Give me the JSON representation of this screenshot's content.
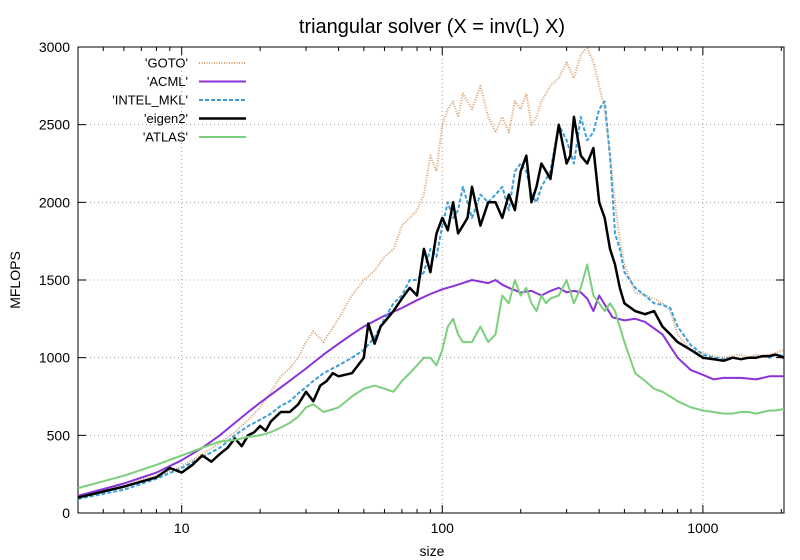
{
  "chart_data": {
    "type": "line",
    "title": "triangular solver (X = inv(L) X)",
    "xlabel": "size",
    "ylabel": "MFLOPS",
    "xscale": "log",
    "xlim": [
      4,
      2048
    ],
    "ylim": [
      0,
      3000
    ],
    "xticks": [
      {
        "value": 10,
        "label": "10"
      },
      {
        "value": 100,
        "label": "100"
      },
      {
        "value": 1000,
        "label": "1000"
      }
    ],
    "yticks": [
      {
        "value": 0,
        "label": "0"
      },
      {
        "value": 500,
        "label": "500"
      },
      {
        "value": 1000,
        "label": "1000"
      },
      {
        "value": 1500,
        "label": "1500"
      },
      {
        "value": 2000,
        "label": "2000"
      },
      {
        "value": 2500,
        "label": "2500"
      },
      {
        "value": 3000,
        "label": "3000"
      }
    ],
    "grid": true,
    "legend_position": "top-left",
    "series": [
      {
        "name": "'GOTO'",
        "color": "#d9a070",
        "style": "dotted",
        "x": [
          4,
          6,
          8,
          10,
          12,
          14,
          16,
          18,
          20,
          22,
          24,
          26,
          28,
          30,
          32,
          35,
          40,
          45,
          50,
          55,
          60,
          65,
          70,
          75,
          80,
          85,
          90,
          95,
          100,
          105,
          110,
          115,
          120,
          130,
          140,
          150,
          160,
          170,
          180,
          190,
          200,
          210,
          220,
          230,
          240,
          250,
          260,
          280,
          300,
          320,
          340,
          360,
          380,
          400,
          420,
          440,
          460,
          480,
          500,
          550,
          600,
          650,
          700,
          750,
          800,
          900,
          1000,
          1100,
          1200,
          1300,
          1400,
          1500,
          1600,
          1700,
          1800,
          1900,
          2048
        ],
        "values": [
          100,
          190,
          240,
          300,
          380,
          450,
          520,
          600,
          680,
          780,
          880,
          930,
          1000,
          1100,
          1170,
          1100,
          1250,
          1400,
          1500,
          1560,
          1650,
          1700,
          1850,
          1900,
          1950,
          2050,
          2300,
          2200,
          2500,
          2600,
          2650,
          2550,
          2700,
          2600,
          2750,
          2550,
          2450,
          2550,
          2450,
          2650,
          2600,
          2700,
          2500,
          2550,
          2650,
          2700,
          2750,
          2800,
          2900,
          2800,
          2950,
          3000,
          2900,
          2750,
          2600,
          2300,
          2000,
          1750,
          1600,
          1420,
          1400,
          1380,
          1350,
          1300,
          1150,
          1050,
          1030,
          1010,
          1000,
          1010,
          1020,
          1000,
          1020,
          1010,
          1020,
          1030,
          1050
        ]
      },
      {
        "name": "'ACML'",
        "color": "#8b32d8",
        "style": "solid",
        "x": [
          4,
          6,
          8,
          10,
          12,
          14,
          16,
          18,
          20,
          25,
          30,
          35,
          40,
          45,
          50,
          60,
          70,
          80,
          90,
          100,
          110,
          120,
          130,
          140,
          150,
          160,
          170,
          180,
          200,
          220,
          240,
          260,
          280,
          300,
          320,
          340,
          360,
          380,
          400,
          450,
          500,
          550,
          600,
          700,
          800,
          900,
          1000,
          1100,
          1200,
          1400,
          1600,
          1800,
          2048
        ],
        "values": [
          110,
          190,
          260,
          340,
          420,
          500,
          580,
          650,
          710,
          830,
          930,
          1020,
          1090,
          1150,
          1200,
          1270,
          1320,
          1370,
          1410,
          1440,
          1460,
          1480,
          1500,
          1490,
          1480,
          1500,
          1470,
          1450,
          1420,
          1430,
          1400,
          1430,
          1450,
          1420,
          1430,
          1420,
          1380,
          1300,
          1400,
          1260,
          1240,
          1250,
          1230,
          1150,
          1000,
          920,
          890,
          860,
          870,
          870,
          860,
          880,
          880
        ]
      },
      {
        "name": "'INTEL_MKL'",
        "color": "#3ba0d8",
        "style": "dashed",
        "x": [
          4,
          6,
          8,
          10,
          12,
          14,
          16,
          18,
          20,
          22,
          24,
          26,
          28,
          30,
          32,
          35,
          40,
          45,
          50,
          55,
          60,
          65,
          70,
          75,
          80,
          85,
          90,
          95,
          100,
          105,
          110,
          115,
          120,
          130,
          140,
          150,
          160,
          170,
          180,
          190,
          200,
          210,
          220,
          230,
          240,
          250,
          260,
          280,
          300,
          320,
          340,
          360,
          380,
          400,
          420,
          440,
          460,
          480,
          500,
          550,
          600,
          650,
          700,
          750,
          800,
          900,
          1000,
          1100,
          1200,
          1300,
          1400,
          1500,
          1600,
          1700,
          1800,
          1900,
          2048
        ],
        "values": [
          90,
          150,
          220,
          290,
          360,
          420,
          500,
          560,
          600,
          640,
          690,
          720,
          770,
          810,
          850,
          900,
          950,
          1000,
          1050,
          1130,
          1250,
          1350,
          1400,
          1500,
          1500,
          1550,
          1700,
          1650,
          1850,
          2000,
          1900,
          1950,
          2100,
          1900,
          2050,
          2000,
          2050,
          2100,
          1950,
          2200,
          2250,
          2200,
          2050,
          2000,
          2100,
          2150,
          2200,
          2500,
          2400,
          2250,
          2550,
          2400,
          2450,
          2600,
          2650,
          2300,
          1800,
          1700,
          1550,
          1450,
          1400,
          1350,
          1340,
          1320,
          1200,
          1080,
          1020,
          1000,
          990,
          1000,
          990,
          1000,
          1000,
          1010,
          1000,
          1020,
          1010
        ]
      },
      {
        "name": "'eigen2'",
        "color": "#000000",
        "style": "solid-thick",
        "x": [
          4,
          6,
          8,
          9,
          10,
          11,
          12,
          13,
          14,
          15,
          16,
          17,
          18,
          19,
          20,
          21,
          22,
          24,
          26,
          28,
          30,
          32,
          34,
          36,
          38,
          40,
          45,
          50,
          52,
          55,
          58,
          60,
          65,
          70,
          75,
          80,
          85,
          90,
          95,
          100,
          105,
          110,
          115,
          120,
          125,
          130,
          140,
          150,
          160,
          170,
          180,
          190,
          200,
          210,
          220,
          230,
          240,
          250,
          260,
          280,
          300,
          310,
          320,
          340,
          360,
          380,
          400,
          420,
          440,
          460,
          480,
          500,
          550,
          600,
          650,
          700,
          750,
          800,
          900,
          1000,
          1100,
          1200,
          1300,
          1400,
          1500,
          1600,
          1700,
          1800,
          1900,
          2048
        ],
        "values": [
          100,
          170,
          230,
          290,
          260,
          310,
          370,
          330,
          380,
          420,
          480,
          430,
          500,
          520,
          560,
          530,
          590,
          650,
          650,
          700,
          780,
          720,
          820,
          850,
          900,
          880,
          900,
          1000,
          1220,
          1090,
          1200,
          1230,
          1300,
          1380,
          1450,
          1400,
          1700,
          1550,
          1800,
          1900,
          1820,
          2000,
          1800,
          1850,
          1900,
          2100,
          1850,
          2000,
          2000,
          1900,
          2050,
          1950,
          2200,
          2300,
          2000,
          2100,
          2250,
          2200,
          2150,
          2500,
          2250,
          2300,
          2550,
          2300,
          2250,
          2350,
          2000,
          1900,
          1700,
          1600,
          1450,
          1350,
          1300,
          1280,
          1300,
          1200,
          1150,
          1100,
          1050,
          1000,
          990,
          980,
          1000,
          990,
          1000,
          1000,
          1010,
          1010,
          1020,
          1000
        ]
      },
      {
        "name": "'ATLAS'",
        "color": "#7ccf7c",
        "style": "solid",
        "x": [
          4,
          6,
          8,
          10,
          12,
          14,
          16,
          18,
          20,
          22,
          24,
          26,
          28,
          30,
          32,
          35,
          40,
          45,
          50,
          55,
          60,
          65,
          70,
          75,
          80,
          85,
          90,
          95,
          100,
          105,
          110,
          115,
          120,
          130,
          140,
          150,
          160,
          170,
          180,
          190,
          200,
          210,
          220,
          230,
          240,
          250,
          260,
          280,
          300,
          320,
          340,
          360,
          380,
          400,
          420,
          440,
          460,
          480,
          500,
          550,
          600,
          650,
          700,
          750,
          800,
          900,
          1000,
          1100,
          1200,
          1300,
          1400,
          1500,
          1600,
          1700,
          1800,
          1900,
          2048
        ],
        "values": [
          160,
          240,
          310,
          370,
          420,
          460,
          470,
          490,
          500,
          520,
          550,
          580,
          620,
          680,
          700,
          650,
          680,
          750,
          800,
          820,
          800,
          780,
          850,
          900,
          950,
          1000,
          1000,
          950,
          1050,
          1200,
          1250,
          1150,
          1100,
          1100,
          1200,
          1100,
          1150,
          1400,
          1350,
          1500,
          1400,
          1450,
          1350,
          1300,
          1400,
          1350,
          1380,
          1400,
          1500,
          1350,
          1450,
          1600,
          1400,
          1350,
          1300,
          1350,
          1300,
          1200,
          1100,
          900,
          850,
          800,
          780,
          750,
          720,
          680,
          660,
          650,
          640,
          640,
          650,
          650,
          640,
          650,
          660,
          660,
          670
        ]
      }
    ]
  }
}
